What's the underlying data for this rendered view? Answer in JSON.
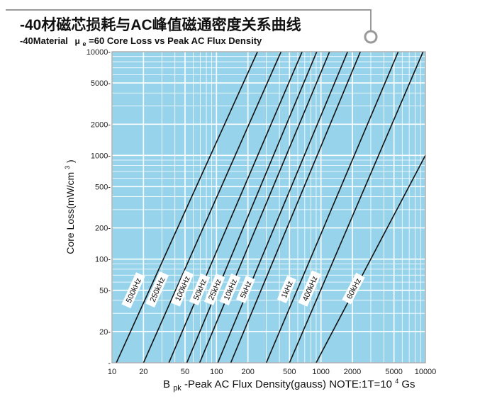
{
  "title_cn": "-40材磁芯损耗与AC峰值磁通密度关系曲线",
  "subtitle_parts": {
    "pre": "-40Material",
    "mu": "μ",
    "mu_sub": "e",
    "post": "=60 Core Loss vs Peak AC Flux Density"
  },
  "colors": {
    "plot_bg": "#97d4ec",
    "grid": "#ffffff",
    "curve": "#111111",
    "frame": "#8a8a8a"
  },
  "chart_data": {
    "type": "line",
    "title": "-40材磁芯损耗与AC峰值磁通密度关系曲线",
    "subtitle": "-40Material μe=60 Core Loss vs Peak AC Flux Density",
    "xlabel": {
      "main": "B",
      "sub": "pk",
      "rest": " -Peak AC Flux Density(gauss)   NOTE:1T=10",
      "sup": "4",
      "tail": "Gs"
    },
    "ylabel": {
      "main": "Core Loss(mW/cm",
      "sup": "3",
      "tail": ")"
    },
    "x_scale": "log",
    "y_scale": "log",
    "xlim": [
      10,
      10000
    ],
    "ylim": [
      10,
      10000
    ],
    "grid": true,
    "x_ticks": [
      {
        "v": 10,
        "label": "10"
      },
      {
        "v": 20,
        "label": "20"
      },
      {
        "v": 50,
        "label": "50"
      },
      {
        "v": 100,
        "label": "100"
      },
      {
        "v": 200,
        "label": "200"
      },
      {
        "v": 500,
        "label": "500"
      },
      {
        "v": 1000,
        "label": "1000"
      },
      {
        "v": 2000,
        "label": "2000"
      },
      {
        "v": 5000,
        "label": "5000"
      },
      {
        "v": 10000,
        "label": "10000"
      }
    ],
    "y_ticks": [
      {
        "v": 10,
        "label": "-"
      },
      {
        "v": 20,
        "label": "20-"
      },
      {
        "v": 50,
        "label": "50-"
      },
      {
        "v": 100,
        "label": "100-"
      },
      {
        "v": 200,
        "label": "200-"
      },
      {
        "v": 500,
        "label": "500-"
      },
      {
        "v": 1000,
        "label": "1000-"
      },
      {
        "v": 2000,
        "label": "2000-"
      },
      {
        "v": 5000,
        "label": "5000-"
      },
      {
        "v": 10000,
        "label": "10000-"
      }
    ],
    "series": [
      {
        "name": "500kHz",
        "x": [
          11,
          247
        ],
        "y": [
          10,
          10000
        ],
        "label_at": [
          16,
          50
        ]
      },
      {
        "name": "250kHz",
        "x": [
          20,
          415
        ],
        "y": [
          10,
          10000
        ],
        "label_at": [
          27,
          51
        ]
      },
      {
        "name": "100kHz",
        "x": [
          35,
          660
        ],
        "y": [
          10,
          10000
        ],
        "label_at": [
          47,
          52
        ]
      },
      {
        "name": "50kHz",
        "x": [
          52,
          912
        ],
        "y": [
          10,
          10000
        ],
        "label_at": [
          69,
          51
        ]
      },
      {
        "name": "25kHz",
        "x": [
          69,
          1209
        ],
        "y": [
          10,
          10000
        ],
        "label_at": [
          96,
          51
        ]
      },
      {
        "name": "10kHz",
        "x": [
          103,
          1801
        ],
        "y": [
          10,
          10000
        ],
        "label_at": [
          135,
          51
        ]
      },
      {
        "name": "5kHz",
        "x": [
          137,
          2385
        ],
        "y": [
          10,
          10000
        ],
        "label_at": [
          190,
          51
        ]
      },
      {
        "name": "1kHz",
        "x": [
          300,
          5500
        ],
        "y": [
          10,
          10000
        ],
        "label_at": [
          470,
          51
        ]
      },
      {
        "name": "400kHz",
        "x": [
          500,
          9500
        ],
        "y": [
          10,
          10000
        ],
        "label_at": [
          780,
          52
        ]
      },
      {
        "name": "60kHz",
        "x": [
          900,
          10000
        ],
        "y": [
          10,
          1000
        ],
        "label_at": [
          2050,
          52
        ]
      }
    ]
  }
}
